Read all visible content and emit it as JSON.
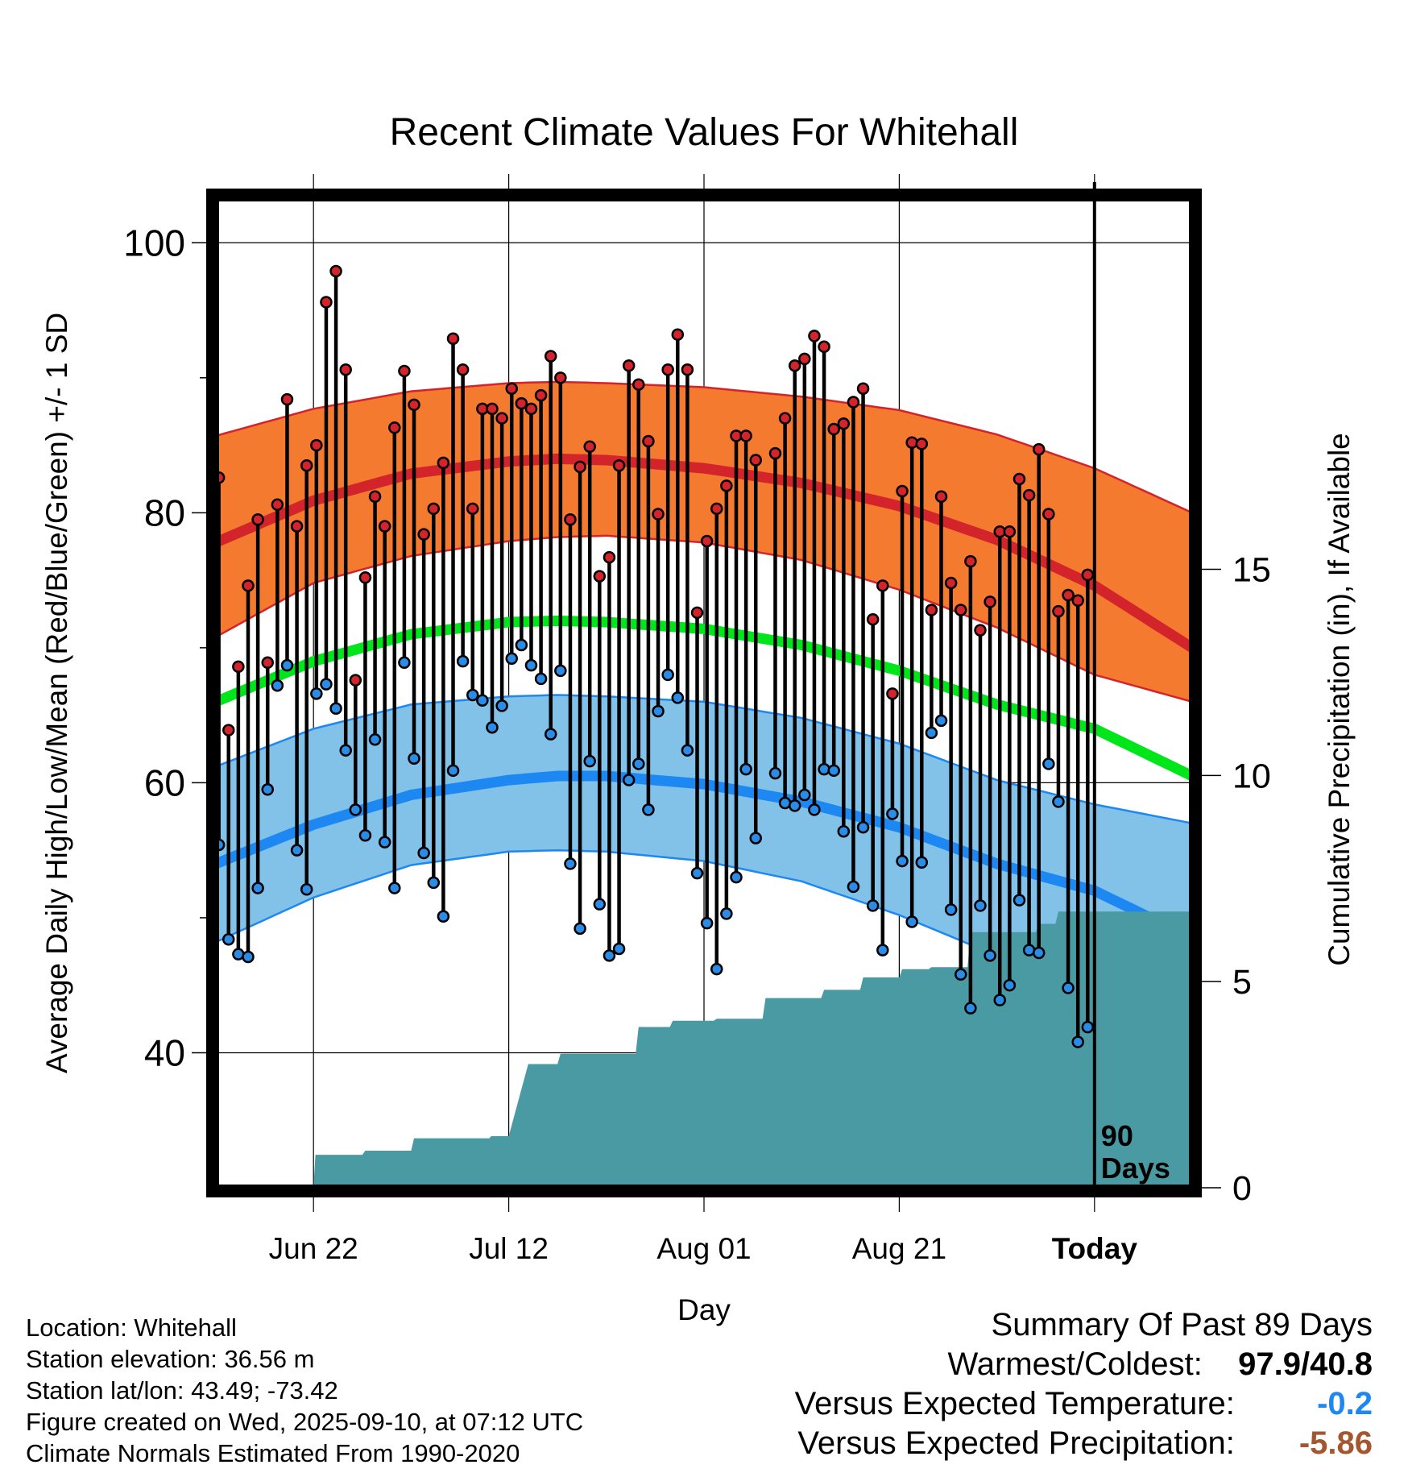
{
  "chart_data": {
    "type": "line",
    "title": "Recent Climate Values For Whitehall",
    "xlabel": "Day",
    "ylabel": "Average Daily High/Low/Mean (Red/Blue/Green) +/- 1 SD",
    "y2label": "Cumulative Precipitation (in), If Available",
    "ylim": [
      30,
      103.3
    ],
    "y2lim": [
      0,
      24
    ],
    "y_ticks": [
      40,
      60,
      80,
      100
    ],
    "y2_ticks": [
      0,
      5,
      10,
      15
    ],
    "xlim": [
      0,
      100
    ],
    "x_ticks": [
      {
        "day": 10,
        "label": "Jun 22"
      },
      {
        "day": 30,
        "label": "Jul 12"
      },
      {
        "day": 50,
        "label": "Aug 01"
      },
      {
        "day": 70,
        "label": "Aug 21"
      },
      {
        "day": 90,
        "label": "Today"
      }
    ],
    "today_day": 90,
    "today_label_1": "90",
    "today_label_2": "Days",
    "normal_high": {
      "days": [
        0,
        10,
        20,
        30,
        35,
        40,
        50,
        60,
        70,
        80,
        90,
        100
      ],
      "values": [
        77.8,
        80.9,
        82.9,
        83.8,
        84.0,
        83.9,
        83.3,
        82.2,
        80.5,
        78.0,
        74.6,
        70.0
      ]
    },
    "high_sd_upper": {
      "days": [
        0,
        10,
        20,
        30,
        35,
        40,
        50,
        60,
        70,
        80,
        90,
        100
      ],
      "values": [
        85.7,
        87.7,
        89.0,
        89.6,
        89.7,
        89.6,
        89.3,
        88.6,
        87.6,
        85.8,
        83.3,
        80.0
      ]
    },
    "high_sd_lower": {
      "days": [
        0,
        10,
        20,
        30,
        35,
        40,
        50,
        60,
        70,
        80,
        90,
        100
      ],
      "values": [
        70.8,
        74.8,
        76.8,
        77.9,
        78.2,
        78.3,
        77.8,
        76.5,
        74.3,
        71.5,
        68.0,
        66.0
      ]
    },
    "normal_mean": {
      "days": [
        0,
        10,
        20,
        30,
        35,
        40,
        50,
        60,
        70,
        80,
        90,
        100
      ],
      "values": [
        66.0,
        69.0,
        71.0,
        71.9,
        72.0,
        71.9,
        71.4,
        70.2,
        68.3,
        65.8,
        64.0,
        60.5
      ]
    },
    "normal_low": {
      "days": [
        0,
        10,
        20,
        30,
        35,
        40,
        50,
        60,
        70,
        80,
        90,
        100
      ],
      "values": [
        54.0,
        56.9,
        59.1,
        60.2,
        60.5,
        60.5,
        59.9,
        58.6,
        56.7,
        54.0,
        52.0,
        48.5
      ]
    },
    "low_sd_upper": {
      "days": [
        0,
        10,
        20,
        30,
        35,
        40,
        50,
        60,
        70,
        80,
        90,
        100
      ],
      "values": [
        61.2,
        64.0,
        65.8,
        66.4,
        66.5,
        66.4,
        66.0,
        64.8,
        62.9,
        60.2,
        58.4,
        57.0
      ]
    },
    "low_sd_lower": {
      "days": [
        0,
        10,
        20,
        30,
        35,
        40,
        50,
        60,
        70,
        80,
        90,
        100
      ],
      "values": [
        48.2,
        51.5,
        53.9,
        54.9,
        55.0,
        54.9,
        54.2,
        52.7,
        50.2,
        47.2,
        44.5,
        42.0
      ]
    },
    "daily": [
      [
        0,
        82.6,
        55.4
      ],
      [
        1,
        63.9,
        48.4
      ],
      [
        2,
        68.6,
        47.3
      ],
      [
        3,
        74.6,
        47.1
      ],
      [
        4,
        79.5,
        52.2
      ],
      [
        5,
        68.9,
        59.5
      ],
      [
        6,
        80.6,
        67.2
      ],
      [
        7,
        88.4,
        68.7
      ],
      [
        8,
        79.0,
        55.0
      ],
      [
        9,
        83.5,
        52.1
      ],
      [
        10,
        85.0,
        66.6
      ],
      [
        11,
        95.6,
        67.3
      ],
      [
        12,
        97.9,
        65.5
      ],
      [
        13,
        90.6,
        62.4
      ],
      [
        14,
        67.6,
        58.0
      ],
      [
        15,
        75.2,
        56.1
      ],
      [
        16,
        81.2,
        63.2
      ],
      [
        17,
        79.0,
        55.6
      ],
      [
        18,
        86.3,
        52.2
      ],
      [
        19,
        90.5,
        68.9
      ],
      [
        20,
        88.0,
        61.8
      ],
      [
        21,
        78.4,
        54.8
      ],
      [
        22,
        80.3,
        52.6
      ],
      [
        23,
        83.7,
        50.1
      ],
      [
        24,
        92.9,
        60.9
      ],
      [
        25,
        90.6,
        69.0
      ],
      [
        26,
        80.3,
        66.5
      ],
      [
        27,
        87.7,
        66.1
      ],
      [
        28,
        87.7,
        64.1
      ],
      [
        29,
        87.0,
        65.7
      ],
      [
        30,
        89.2,
        69.2
      ],
      [
        31,
        88.1,
        70.2
      ],
      [
        32,
        87.7,
        68.7
      ],
      [
        33,
        88.7,
        67.7
      ],
      [
        34,
        91.6,
        63.6
      ],
      [
        35,
        90.0,
        68.3
      ],
      [
        36,
        79.5,
        54.0
      ],
      [
        37,
        83.4,
        49.2
      ],
      [
        38,
        84.9,
        61.6
      ],
      [
        39,
        75.3,
        51.0
      ],
      [
        40,
        76.7,
        47.2
      ],
      [
        41,
        83.5,
        47.7
      ],
      [
        42,
        90.9,
        60.2
      ],
      [
        43,
        89.5,
        61.4
      ],
      [
        44,
        85.3,
        58.0
      ],
      [
        45,
        79.9,
        65.3
      ],
      [
        46,
        90.6,
        68.0
      ],
      [
        47,
        93.2,
        66.3
      ],
      [
        48,
        90.6,
        62.4
      ],
      [
        49,
        72.6,
        53.3
      ],
      [
        50,
        77.9,
        49.6
      ],
      [
        51,
        80.3,
        46.2
      ],
      [
        52,
        82.0,
        50.3
      ],
      [
        53,
        85.7,
        53.0
      ],
      [
        54,
        85.7,
        61.0
      ],
      [
        55,
        83.9,
        55.9
      ],
      [
        57,
        84.4,
        60.7
      ],
      [
        58,
        87.0,
        58.5
      ],
      [
        59,
        90.9,
        58.3
      ],
      [
        60,
        91.4,
        59.1
      ],
      [
        61,
        93.1,
        58.0
      ],
      [
        62,
        92.3,
        61.0
      ],
      [
        63,
        86.2,
        60.9
      ],
      [
        64,
        86.6,
        56.4
      ],
      [
        65,
        88.2,
        52.3
      ],
      [
        66,
        89.2,
        56.7
      ],
      [
        67,
        72.1,
        50.9
      ],
      [
        68,
        74.6,
        47.6
      ],
      [
        69,
        66.6,
        57.7
      ],
      [
        70,
        81.6,
        54.2
      ],
      [
        71,
        85.2,
        49.7
      ],
      [
        72,
        85.1,
        54.1
      ],
      [
        73,
        72.8,
        63.7
      ],
      [
        74,
        81.2,
        64.6
      ],
      [
        75,
        74.8,
        50.6
      ],
      [
        76,
        72.8,
        45.8
      ],
      [
        77,
        76.4,
        43.3
      ],
      [
        78,
        71.3,
        50.9
      ],
      [
        79,
        73.4,
        47.2
      ],
      [
        80,
        78.6,
        43.9
      ],
      [
        81,
        78.6,
        45.0
      ],
      [
        82,
        82.5,
        51.3
      ],
      [
        83,
        81.3,
        47.6
      ],
      [
        84,
        84.7,
        47.4
      ],
      [
        85,
        79.9,
        61.4
      ],
      [
        86,
        72.7,
        58.6
      ],
      [
        87,
        73.9,
        44.8
      ],
      [
        88,
        73.5,
        40.8
      ],
      [
        89,
        75.4,
        41.9
      ]
    ],
    "precip_cumulative": [
      [
        0,
        0
      ],
      [
        10,
        0
      ],
      [
        10.2,
        0.8
      ],
      [
        15,
        0.8
      ],
      [
        15.3,
        0.9
      ],
      [
        20,
        0.9
      ],
      [
        20.3,
        1.2
      ],
      [
        28,
        1.2
      ],
      [
        28.2,
        1.25
      ],
      [
        30,
        1.25
      ],
      [
        32,
        3.0
      ],
      [
        35,
        3.0
      ],
      [
        35.3,
        3.25
      ],
      [
        43,
        3.25
      ],
      [
        43.3,
        3.9
      ],
      [
        46.5,
        3.9
      ],
      [
        46.8,
        4.05
      ],
      [
        51,
        4.05
      ],
      [
        51.3,
        4.1
      ],
      [
        56,
        4.1
      ],
      [
        56.3,
        4.6
      ],
      [
        62,
        4.6
      ],
      [
        62.3,
        4.8
      ],
      [
        66,
        4.8
      ],
      [
        66.3,
        5.1
      ],
      [
        70,
        5.1
      ],
      [
        70.3,
        5.3
      ],
      [
        73,
        5.3
      ],
      [
        73.3,
        5.35
      ],
      [
        77,
        5.35
      ],
      [
        77.3,
        6.2
      ],
      [
        84,
        6.2
      ],
      [
        84.3,
        6.4
      ],
      [
        86,
        6.4
      ],
      [
        86.3,
        6.7
      ],
      [
        100,
        6.7
      ]
    ]
  },
  "info": {
    "location": "Location: Whitehall",
    "elevation": "Station elevation: 36.56 m",
    "latlon": "Station lat/lon: 43.49; -73.42",
    "created": "Figure created on Wed, 2025-09-10, at 07:12 UTC",
    "normals": "Climate Normals Estimated From 1990-2020"
  },
  "summary": {
    "title": "Summary Of Past 89 Days",
    "warm_label": "Warmest/Coldest:",
    "warm_value": "97.9/40.8",
    "temp_label": "Versus Expected Temperature:",
    "temp_value": "-0.2",
    "precip_label": "Versus Expected Precipitation:",
    "precip_value": "-5.86"
  },
  "colors": {
    "high_band": "#f47a30",
    "high_line": "#d3242b",
    "mean_line": "#00e61a",
    "low_band": "#82c1e8",
    "low_line": "#1e88f2",
    "precip": "#4a9aa4",
    "dot_high": "#d3242b",
    "dot_low": "#2a8ce6",
    "temp_value": "#1e88f2",
    "precip_value": "#a4572e"
  }
}
